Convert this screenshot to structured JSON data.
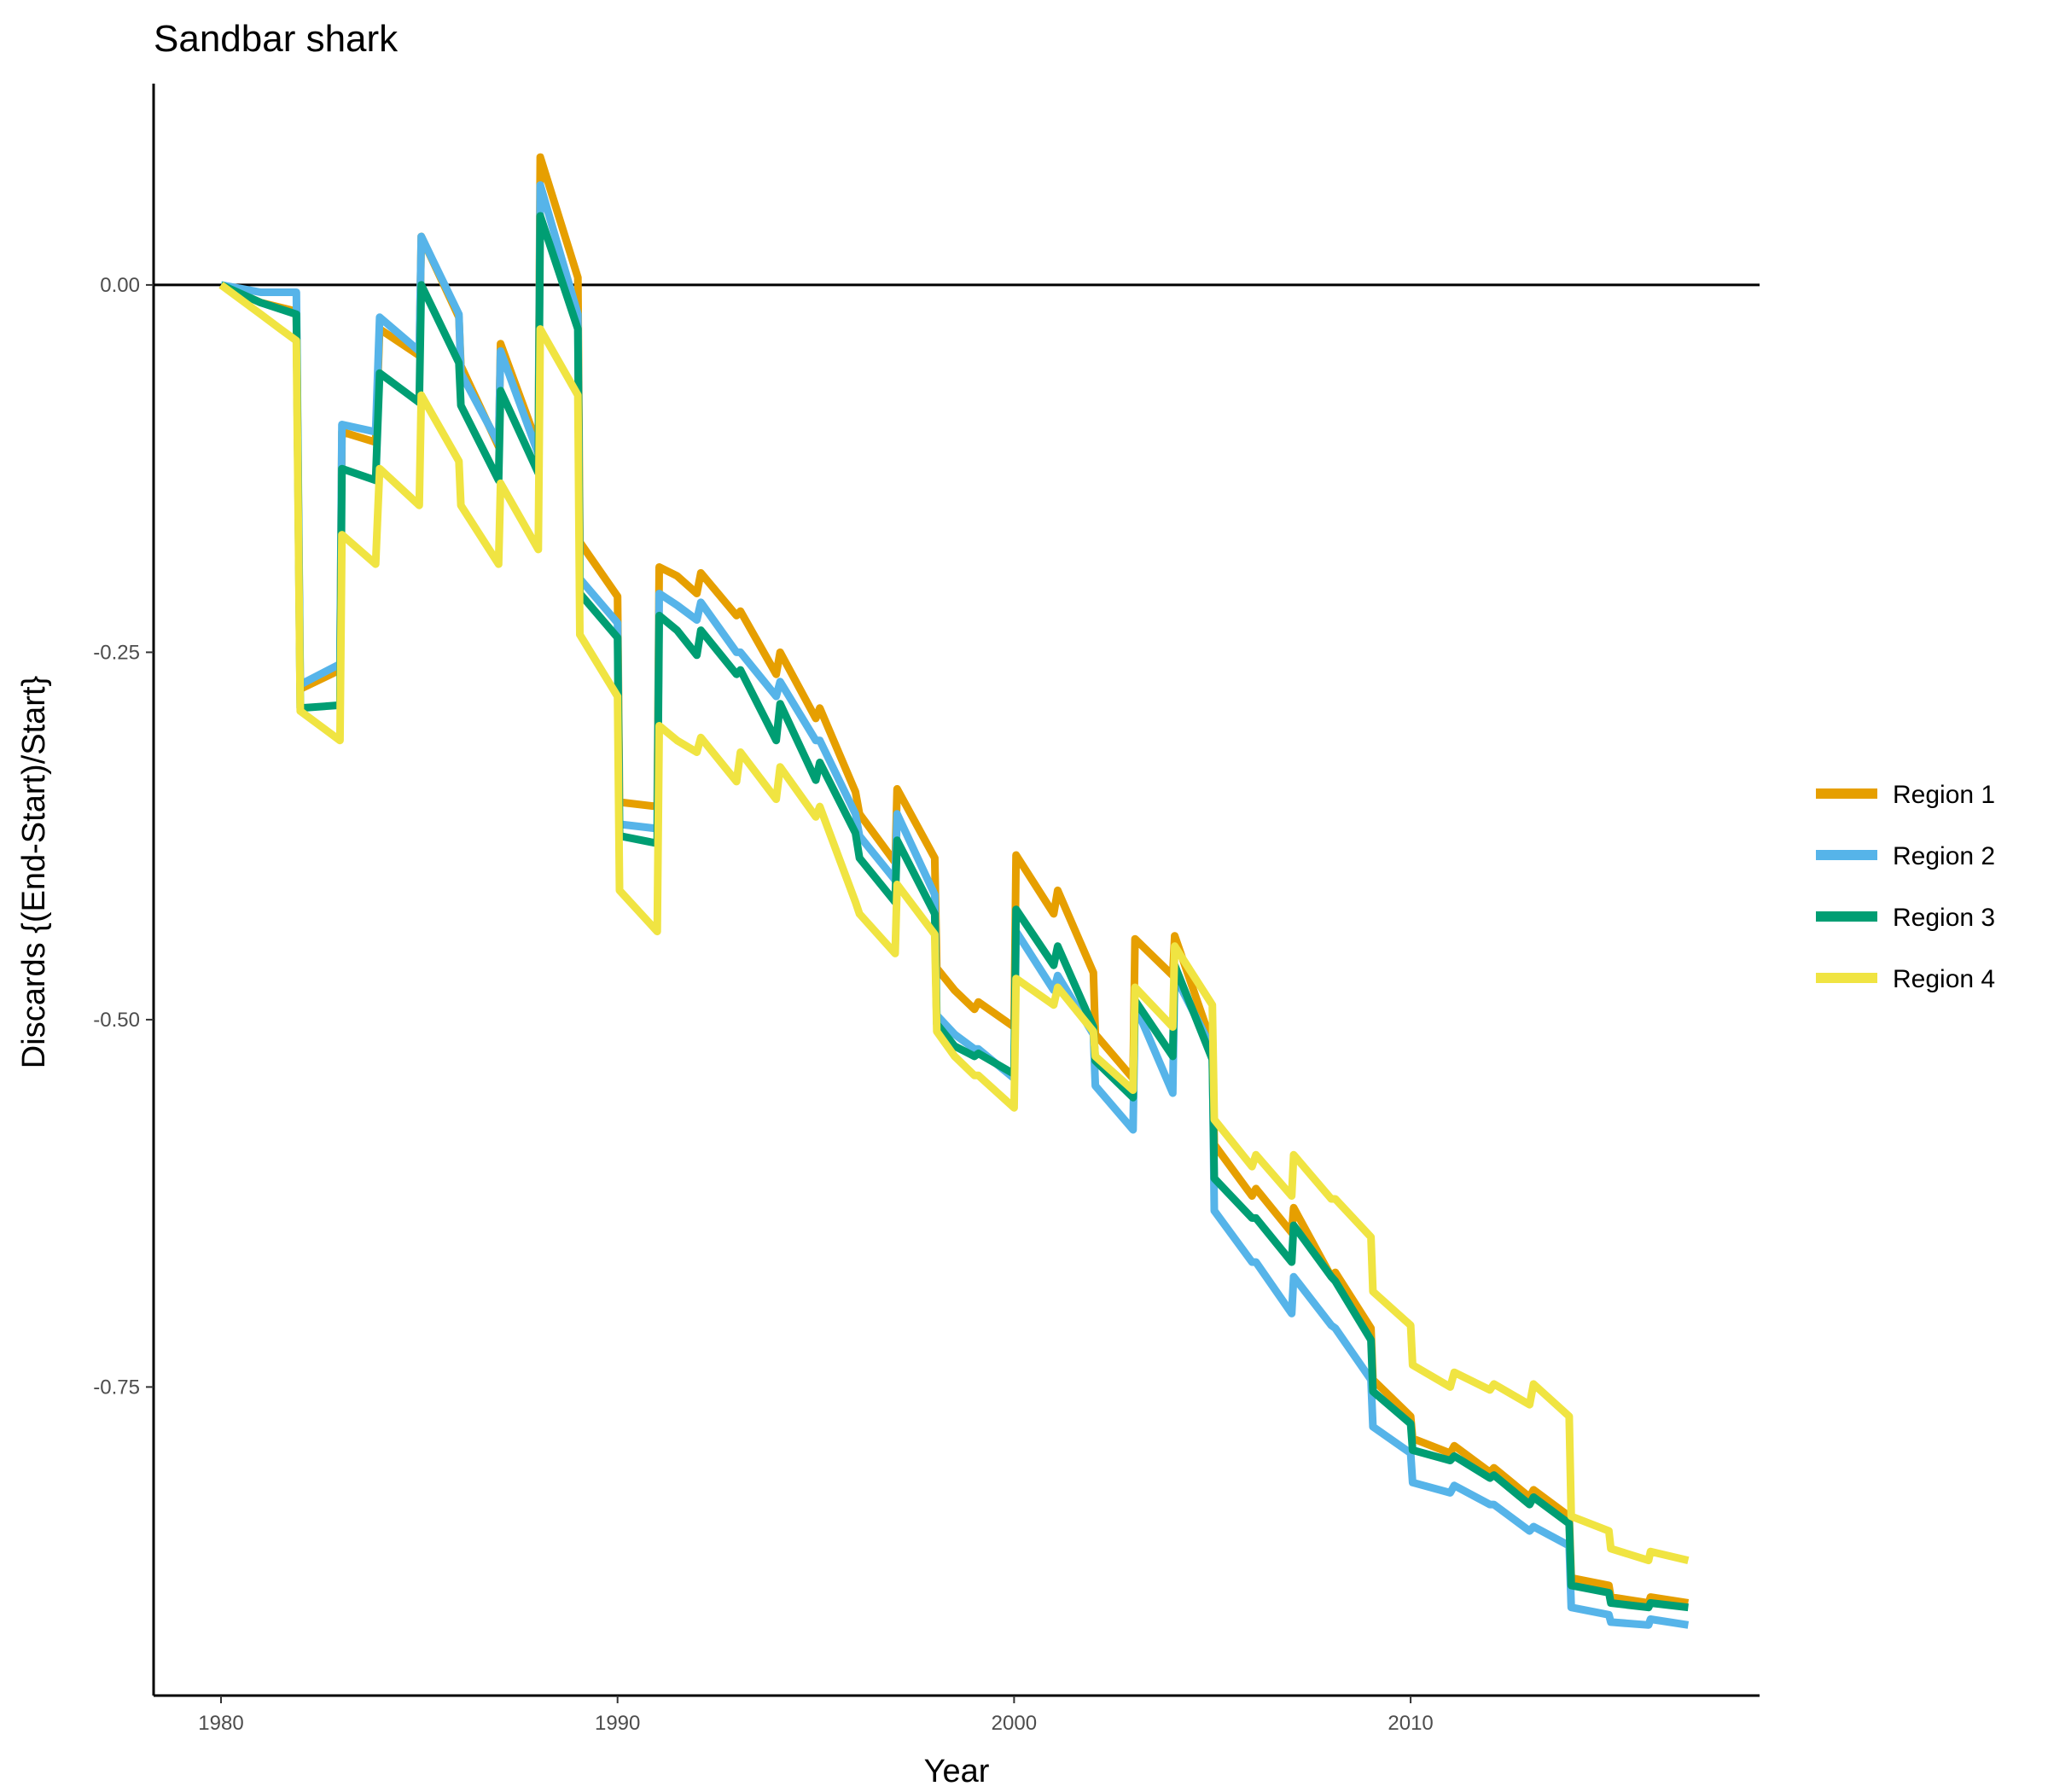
{
  "chart_data": {
    "type": "line",
    "title": "Sandbar shark",
    "xlabel": "Year",
    "ylabel": "Discards {(End-Start)/Start}",
    "xlim": [
      1978.3,
      2018.8
    ],
    "ylim": [
      -0.96,
      0.137
    ],
    "xticks": [
      1980,
      1990,
      2000,
      2010
    ],
    "xtick_labels": [
      "1980",
      "1990",
      "2000",
      "2010"
    ],
    "yticks": [
      0,
      -0.25,
      -0.5,
      -0.75
    ],
    "ytick_labels": [
      "0.00",
      "-0.25",
      "-0.50",
      "-0.75"
    ],
    "reference_line_y": 0,
    "grid": false,
    "legend_position": "right",
    "series": [
      {
        "name": "Region 1",
        "color": "#E69F00",
        "points": [
          [
            1980,
            0.0
          ],
          [
            1981,
            -0.012
          ],
          [
            1981.9,
            -0.018
          ],
          [
            1982.0,
            -0.275
          ],
          [
            1983,
            -0.262
          ],
          [
            1983.05,
            -0.1
          ],
          [
            1983.9,
            -0.107
          ],
          [
            1984.0,
            -0.03
          ],
          [
            1985,
            -0.048
          ],
          [
            1985.05,
            0.033
          ],
          [
            1986,
            -0.022
          ],
          [
            1986.05,
            -0.055
          ],
          [
            1987,
            -0.11
          ],
          [
            1987.05,
            -0.04
          ],
          [
            1988,
            -0.11
          ],
          [
            1988.05,
            0.087
          ],
          [
            1989,
            0.005
          ],
          [
            1989.05,
            -0.175
          ],
          [
            1990,
            -0.212
          ],
          [
            1990.05,
            -0.352
          ],
          [
            1991,
            -0.355
          ],
          [
            1991.05,
            -0.192
          ],
          [
            1991.5,
            -0.198
          ],
          [
            1992,
            -0.21
          ],
          [
            1992.1,
            -0.196
          ],
          [
            1993,
            -0.225
          ],
          [
            1993.1,
            -0.222
          ],
          [
            1994,
            -0.265
          ],
          [
            1994.1,
            -0.25
          ],
          [
            1995,
            -0.295
          ],
          [
            1995.1,
            -0.288
          ],
          [
            1996,
            -0.345
          ],
          [
            1996.1,
            -0.36
          ],
          [
            1997,
            -0.393
          ],
          [
            1997.05,
            -0.343
          ],
          [
            1998,
            -0.39
          ],
          [
            1998.05,
            -0.465
          ],
          [
            1998.5,
            -0.48
          ],
          [
            1999,
            -0.493
          ],
          [
            1999.1,
            -0.488
          ],
          [
            2000,
            -0.505
          ],
          [
            2000.05,
            -0.388
          ],
          [
            2001,
            -0.428
          ],
          [
            2001.1,
            -0.412
          ],
          [
            2002,
            -0.468
          ],
          [
            2002.05,
            -0.51
          ],
          [
            2003,
            -0.54
          ],
          [
            2003.05,
            -0.445
          ],
          [
            2004,
            -0.47
          ],
          [
            2004.05,
            -0.443
          ],
          [
            2005,
            -0.517
          ],
          [
            2005.05,
            -0.585
          ],
          [
            2006,
            -0.62
          ],
          [
            2006.1,
            -0.615
          ],
          [
            2007,
            -0.645
          ],
          [
            2007.05,
            -0.628
          ],
          [
            2008,
            -0.675
          ],
          [
            2008.1,
            -0.672
          ],
          [
            2009,
            -0.71
          ],
          [
            2009.05,
            -0.745
          ],
          [
            2010,
            -0.77
          ],
          [
            2010.05,
            -0.785
          ],
          [
            2011,
            -0.795
          ],
          [
            2011.1,
            -0.79
          ],
          [
            2012,
            -0.808
          ],
          [
            2012.1,
            -0.805
          ],
          [
            2013,
            -0.825
          ],
          [
            2013.1,
            -0.82
          ],
          [
            2014,
            -0.838
          ],
          [
            2014.05,
            -0.88
          ],
          [
            2015,
            -0.885
          ],
          [
            2015.05,
            -0.893
          ],
          [
            2016,
            -0.897
          ],
          [
            2016.05,
            -0.893
          ],
          [
            2017,
            -0.897
          ]
        ]
      },
      {
        "name": "Region 2",
        "color": "#56B4E9",
        "points": [
          [
            1980,
            0.0
          ],
          [
            1981,
            -0.005
          ],
          [
            1981.9,
            -0.005
          ],
          [
            1982.0,
            -0.272
          ],
          [
            1983,
            -0.258
          ],
          [
            1983.05,
            -0.095
          ],
          [
            1983.9,
            -0.1
          ],
          [
            1984.0,
            -0.022
          ],
          [
            1985,
            -0.045
          ],
          [
            1985.05,
            0.033
          ],
          [
            1986,
            -0.02
          ],
          [
            1986.05,
            -0.06
          ],
          [
            1987,
            -0.108
          ],
          [
            1987.05,
            -0.045
          ],
          [
            1988,
            -0.115
          ],
          [
            1988.05,
            0.068
          ],
          [
            1989,
            -0.02
          ],
          [
            1989.05,
            -0.2
          ],
          [
            1990,
            -0.23
          ],
          [
            1990.05,
            -0.367
          ],
          [
            1991,
            -0.37
          ],
          [
            1991.05,
            -0.21
          ],
          [
            1991.5,
            -0.218
          ],
          [
            1992,
            -0.228
          ],
          [
            1992.1,
            -0.216
          ],
          [
            1993,
            -0.25
          ],
          [
            1993.1,
            -0.25
          ],
          [
            1994,
            -0.28
          ],
          [
            1994.1,
            -0.27
          ],
          [
            1995,
            -0.31
          ],
          [
            1995.1,
            -0.31
          ],
          [
            1996,
            -0.36
          ],
          [
            1996.1,
            -0.375
          ],
          [
            1997,
            -0.405
          ],
          [
            1997.05,
            -0.36
          ],
          [
            1998,
            -0.415
          ],
          [
            1998.05,
            -0.497
          ],
          [
            1998.5,
            -0.51
          ],
          [
            1999,
            -0.52
          ],
          [
            1999.1,
            -0.52
          ],
          [
            2000,
            -0.54
          ],
          [
            2000.05,
            -0.44
          ],
          [
            2001,
            -0.48
          ],
          [
            2001.1,
            -0.47
          ],
          [
            2002,
            -0.51
          ],
          [
            2002.05,
            -0.545
          ],
          [
            2003,
            -0.575
          ],
          [
            2003.05,
            -0.49
          ],
          [
            2004,
            -0.55
          ],
          [
            2004.05,
            -0.47
          ],
          [
            2005,
            -0.52
          ],
          [
            2005.05,
            -0.63
          ],
          [
            2006,
            -0.665
          ],
          [
            2006.1,
            -0.665
          ],
          [
            2007,
            -0.7
          ],
          [
            2007.05,
            -0.675
          ],
          [
            2008,
            -0.708
          ],
          [
            2008.1,
            -0.71
          ],
          [
            2009,
            -0.745
          ],
          [
            2009.05,
            -0.777
          ],
          [
            2010,
            -0.795
          ],
          [
            2010.05,
            -0.815
          ],
          [
            2011,
            -0.822
          ],
          [
            2011.1,
            -0.817
          ],
          [
            2012,
            -0.83
          ],
          [
            2012.1,
            -0.83
          ],
          [
            2013,
            -0.848
          ],
          [
            2013.1,
            -0.845
          ],
          [
            2014,
            -0.858
          ],
          [
            2014.05,
            -0.9
          ],
          [
            2015,
            -0.905
          ],
          [
            2015.05,
            -0.91
          ],
          [
            2016,
            -0.912
          ],
          [
            2016.05,
            -0.908
          ],
          [
            2017,
            -0.912
          ]
        ]
      },
      {
        "name": "Region 3",
        "color": "#009E73",
        "points": [
          [
            1980,
            0.0
          ],
          [
            1981,
            -0.012
          ],
          [
            1981.9,
            -0.02
          ],
          [
            1982.0,
            -0.288
          ],
          [
            1983,
            -0.286
          ],
          [
            1983.05,
            -0.125
          ],
          [
            1983.9,
            -0.133
          ],
          [
            1984.0,
            -0.06
          ],
          [
            1985,
            -0.08
          ],
          [
            1985.05,
            0.0
          ],
          [
            1986,
            -0.053
          ],
          [
            1986.05,
            -0.082
          ],
          [
            1987,
            -0.133
          ],
          [
            1987.05,
            -0.072
          ],
          [
            1988,
            -0.128
          ],
          [
            1988.05,
            0.047
          ],
          [
            1989,
            -0.03
          ],
          [
            1989.05,
            -0.21
          ],
          [
            1990,
            -0.24
          ],
          [
            1990.05,
            -0.375
          ],
          [
            1991,
            -0.38
          ],
          [
            1991.05,
            -0.225
          ],
          [
            1991.5,
            -0.235
          ],
          [
            1992,
            -0.252
          ],
          [
            1992.1,
            -0.235
          ],
          [
            1993,
            -0.265
          ],
          [
            1993.1,
            -0.262
          ],
          [
            1994,
            -0.31
          ],
          [
            1994.1,
            -0.285
          ],
          [
            1995,
            -0.337
          ],
          [
            1995.1,
            -0.325
          ],
          [
            1996,
            -0.373
          ],
          [
            1996.1,
            -0.39
          ],
          [
            1997,
            -0.42
          ],
          [
            1997.05,
            -0.378
          ],
          [
            1998,
            -0.428
          ],
          [
            1998.05,
            -0.503
          ],
          [
            1998.5,
            -0.518
          ],
          [
            1999,
            -0.525
          ],
          [
            1999.1,
            -0.523
          ],
          [
            2000,
            -0.537
          ],
          [
            2000.05,
            -0.425
          ],
          [
            2001,
            -0.463
          ],
          [
            2001.1,
            -0.45
          ],
          [
            2002,
            -0.505
          ],
          [
            2002.05,
            -0.528
          ],
          [
            2003,
            -0.553
          ],
          [
            2003.05,
            -0.487
          ],
          [
            2004,
            -0.525
          ],
          [
            2004.05,
            -0.463
          ],
          [
            2005,
            -0.527
          ],
          [
            2005.05,
            -0.608
          ],
          [
            2006,
            -0.635
          ],
          [
            2006.1,
            -0.635
          ],
          [
            2007,
            -0.665
          ],
          [
            2007.05,
            -0.64
          ],
          [
            2008,
            -0.675
          ],
          [
            2008.1,
            -0.678
          ],
          [
            2009,
            -0.718
          ],
          [
            2009.05,
            -0.753
          ],
          [
            2010,
            -0.775
          ],
          [
            2010.05,
            -0.793
          ],
          [
            2011,
            -0.8
          ],
          [
            2011.1,
            -0.797
          ],
          [
            2012,
            -0.812
          ],
          [
            2012.1,
            -0.81
          ],
          [
            2013,
            -0.83
          ],
          [
            2013.1,
            -0.825
          ],
          [
            2014,
            -0.843
          ],
          [
            2014.05,
            -0.885
          ],
          [
            2015,
            -0.89
          ],
          [
            2015.05,
            -0.897
          ],
          [
            2016,
            -0.9
          ],
          [
            2016.05,
            -0.897
          ],
          [
            2017,
            -0.9
          ]
        ]
      },
      {
        "name": "Region 4",
        "color": "#F0E442",
        "points": [
          [
            1980,
            0.0
          ],
          [
            1981,
            -0.02
          ],
          [
            1981.5,
            -0.03
          ],
          [
            1981.9,
            -0.038
          ],
          [
            1982.0,
            -0.29
          ],
          [
            1983,
            -0.31
          ],
          [
            1983.05,
            -0.17
          ],
          [
            1983.9,
            -0.19
          ],
          [
            1984.0,
            -0.125
          ],
          [
            1985,
            -0.15
          ],
          [
            1985.05,
            -0.075
          ],
          [
            1986,
            -0.12
          ],
          [
            1986.05,
            -0.15
          ],
          [
            1987,
            -0.19
          ],
          [
            1987.05,
            -0.135
          ],
          [
            1988,
            -0.18
          ],
          [
            1988.05,
            -0.03
          ],
          [
            1989,
            -0.075
          ],
          [
            1989.05,
            -0.238
          ],
          [
            1990,
            -0.28
          ],
          [
            1990.05,
            -0.412
          ],
          [
            1991,
            -0.44
          ],
          [
            1991.05,
            -0.3
          ],
          [
            1991.5,
            -0.31
          ],
          [
            1992,
            -0.318
          ],
          [
            1992.1,
            -0.308
          ],
          [
            1993,
            -0.338
          ],
          [
            1993.1,
            -0.318
          ],
          [
            1994,
            -0.35
          ],
          [
            1994.1,
            -0.328
          ],
          [
            1995,
            -0.362
          ],
          [
            1995.1,
            -0.355
          ],
          [
            1996,
            -0.42
          ],
          [
            1996.1,
            -0.428
          ],
          [
            1997,
            -0.455
          ],
          [
            1997.05,
            -0.408
          ],
          [
            1998,
            -0.442
          ],
          [
            1998.05,
            -0.508
          ],
          [
            1998.5,
            -0.525
          ],
          [
            1999,
            -0.538
          ],
          [
            1999.1,
            -0.538
          ],
          [
            2000,
            -0.56
          ],
          [
            2000.05,
            -0.472
          ],
          [
            2001,
            -0.49
          ],
          [
            2001.1,
            -0.478
          ],
          [
            2002,
            -0.508
          ],
          [
            2002.05,
            -0.525
          ],
          [
            2003,
            -0.548
          ],
          [
            2003.05,
            -0.478
          ],
          [
            2004,
            -0.505
          ],
          [
            2004.05,
            -0.45
          ],
          [
            2005,
            -0.49
          ],
          [
            2005.05,
            -0.568
          ],
          [
            2006,
            -0.6
          ],
          [
            2006.1,
            -0.592
          ],
          [
            2007,
            -0.62
          ],
          [
            2007.05,
            -0.592
          ],
          [
            2008,
            -0.622
          ],
          [
            2008.1,
            -0.622
          ],
          [
            2009,
            -0.648
          ],
          [
            2009.05,
            -0.685
          ],
          [
            2010,
            -0.708
          ],
          [
            2010.05,
            -0.735
          ],
          [
            2011,
            -0.75
          ],
          [
            2011.1,
            -0.74
          ],
          [
            2012,
            -0.752
          ],
          [
            2012.1,
            -0.748
          ],
          [
            2013,
            -0.762
          ],
          [
            2013.1,
            -0.748
          ],
          [
            2014,
            -0.77
          ],
          [
            2014.05,
            -0.838
          ],
          [
            2015,
            -0.848
          ],
          [
            2015.05,
            -0.86
          ],
          [
            2016,
            -0.868
          ],
          [
            2016.05,
            -0.862
          ],
          [
            2017,
            -0.868
          ]
        ]
      }
    ]
  }
}
